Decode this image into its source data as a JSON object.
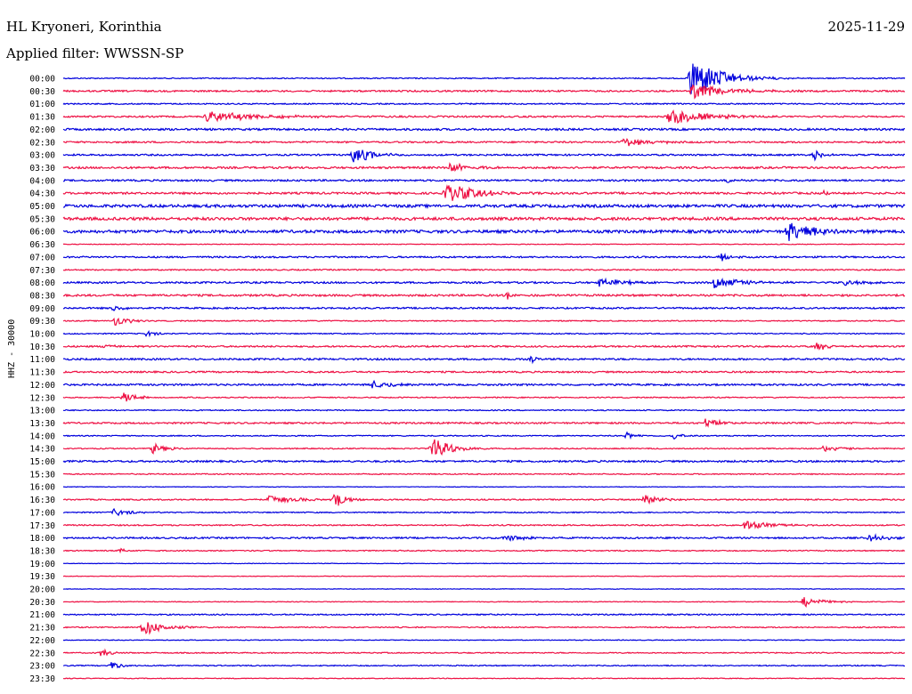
{
  "header": {
    "station": "HL Kryoneri, Korinthia",
    "date": "2025-11-29",
    "filter": "Applied filter: WWSSN-SP"
  },
  "chart_data": {
    "type": "line",
    "title": "HL Kryoneri, Korinthia",
    "subtitle": "Applied filter: WWSSN-SP",
    "ylabel": "HHZ - 30000",
    "colors": {
      "blue": "#0000dd",
      "red": "#ee1144"
    },
    "grid": false,
    "row_labels": [
      "00:00",
      "00:30",
      "01:00",
      "01:30",
      "02:00",
      "02:30",
      "03:00",
      "03:30",
      "04:00",
      "04:30",
      "05:00",
      "05:30",
      "06:00",
      "06:30",
      "07:00",
      "07:30",
      "08:00",
      "08:30",
      "09:00",
      "09:30",
      "10:00",
      "10:30",
      "11:00",
      "11:30",
      "12:00",
      "12:30",
      "13:00",
      "13:30",
      "14:00",
      "14:30",
      "15:00",
      "15:30",
      "16:00",
      "16:30",
      "17:00",
      "17:30",
      "18:00",
      "18:30",
      "19:00",
      "19:30",
      "20:00",
      "20:30",
      "21:00",
      "21:30",
      "22:00",
      "22:30",
      "23:00",
      "23:30"
    ],
    "row_noise": [
      0.6,
      0.9,
      0.7,
      0.9,
      1.1,
      0.9,
      0.9,
      1.1,
      1.0,
      1.1,
      1.6,
      1.6,
      1.6,
      0.4,
      0.9,
      0.7,
      1.0,
      1.1,
      0.9,
      0.6,
      0.6,
      0.9,
      1.0,
      0.9,
      1.0,
      0.6,
      0.6,
      0.9,
      0.6,
      0.6,
      1.0,
      0.6,
      0.3,
      0.7,
      0.6,
      0.7,
      0.9,
      0.6,
      0.3,
      0.3,
      0.3,
      0.4,
      0.7,
      0.6,
      0.4,
      0.6,
      0.6,
      0.4
    ],
    "events": [
      {
        "row": 0,
        "t": 0.746,
        "amp": 26,
        "dur": 0.03
      },
      {
        "row": 1,
        "t": 0.747,
        "amp": 8,
        "dur": 0.04
      },
      {
        "row": 3,
        "t": 0.17,
        "amp": 6,
        "dur": 0.06
      },
      {
        "row": 3,
        "t": 0.72,
        "amp": 9,
        "dur": 0.04
      },
      {
        "row": 5,
        "t": 0.665,
        "amp": 5,
        "dur": 0.03
      },
      {
        "row": 6,
        "t": 0.345,
        "amp": 10,
        "dur": 0.02
      },
      {
        "row": 6,
        "t": 0.893,
        "amp": 5,
        "dur": 0.01
      },
      {
        "row": 7,
        "t": 0.46,
        "amp": 6,
        "dur": 0.02
      },
      {
        "row": 8,
        "t": 0.79,
        "amp": 5,
        "dur": 0.005
      },
      {
        "row": 9,
        "t": 0.455,
        "amp": 10,
        "dur": 0.04
      },
      {
        "row": 9,
        "t": 0.905,
        "amp": 3,
        "dur": 0.01
      },
      {
        "row": 12,
        "t": 0.861,
        "amp": 12,
        "dur": 0.03
      },
      {
        "row": 14,
        "t": 0.782,
        "amp": 6,
        "dur": 0.01
      },
      {
        "row": 16,
        "t": 0.637,
        "amp": 5,
        "dur": 0.03
      },
      {
        "row": 16,
        "t": 0.774,
        "amp": 7,
        "dur": 0.03
      },
      {
        "row": 16,
        "t": 0.93,
        "amp": 5,
        "dur": 0.015
      },
      {
        "row": 17,
        "t": 0.528,
        "amp": 6,
        "dur": 0.005
      },
      {
        "row": 18,
        "t": 0.06,
        "amp": 4,
        "dur": 0.01
      },
      {
        "row": 19,
        "t": 0.062,
        "amp": 6,
        "dur": 0.015
      },
      {
        "row": 20,
        "t": 0.1,
        "amp": 4,
        "dur": 0.01
      },
      {
        "row": 21,
        "t": 0.05,
        "amp": 3,
        "dur": 0.01
      },
      {
        "row": 21,
        "t": 0.895,
        "amp": 4,
        "dur": 0.02
      },
      {
        "row": 22,
        "t": 0.558,
        "amp": 6,
        "dur": 0.003
      },
      {
        "row": 24,
        "t": 0.368,
        "amp": 5,
        "dur": 0.02
      },
      {
        "row": 25,
        "t": 0.072,
        "amp": 6,
        "dur": 0.015
      },
      {
        "row": 27,
        "t": 0.763,
        "amp": 6,
        "dur": 0.015
      },
      {
        "row": 28,
        "t": 0.67,
        "amp": 4,
        "dur": 0.01
      },
      {
        "row": 28,
        "t": 0.726,
        "amp": 4,
        "dur": 0.01
      },
      {
        "row": 29,
        "t": 0.106,
        "amp": 6,
        "dur": 0.015
      },
      {
        "row": 29,
        "t": 0.438,
        "amp": 13,
        "dur": 0.02
      },
      {
        "row": 29,
        "t": 0.903,
        "amp": 4,
        "dur": 0.02
      },
      {
        "row": 33,
        "t": 0.245,
        "amp": 5,
        "dur": 0.03
      },
      {
        "row": 33,
        "t": 0.323,
        "amp": 12,
        "dur": 0.01
      },
      {
        "row": 33,
        "t": 0.69,
        "amp": 6,
        "dur": 0.02
      },
      {
        "row": 34,
        "t": 0.06,
        "amp": 4,
        "dur": 0.02
      },
      {
        "row": 35,
        "t": 0.81,
        "amp": 5,
        "dur": 0.03
      },
      {
        "row": 36,
        "t": 0.525,
        "amp": 4,
        "dur": 0.02
      },
      {
        "row": 36,
        "t": 0.955,
        "amp": 5,
        "dur": 0.02
      },
      {
        "row": 37,
        "t": 0.068,
        "amp": 4,
        "dur": 0.005
      },
      {
        "row": 41,
        "t": 0.88,
        "amp": 6,
        "dur": 0.02
      },
      {
        "row": 43,
        "t": 0.095,
        "amp": 10,
        "dur": 0.02
      },
      {
        "row": 45,
        "t": 0.045,
        "amp": 5,
        "dur": 0.01
      },
      {
        "row": 46,
        "t": 0.057,
        "amp": 6,
        "dur": 0.01
      }
    ]
  }
}
